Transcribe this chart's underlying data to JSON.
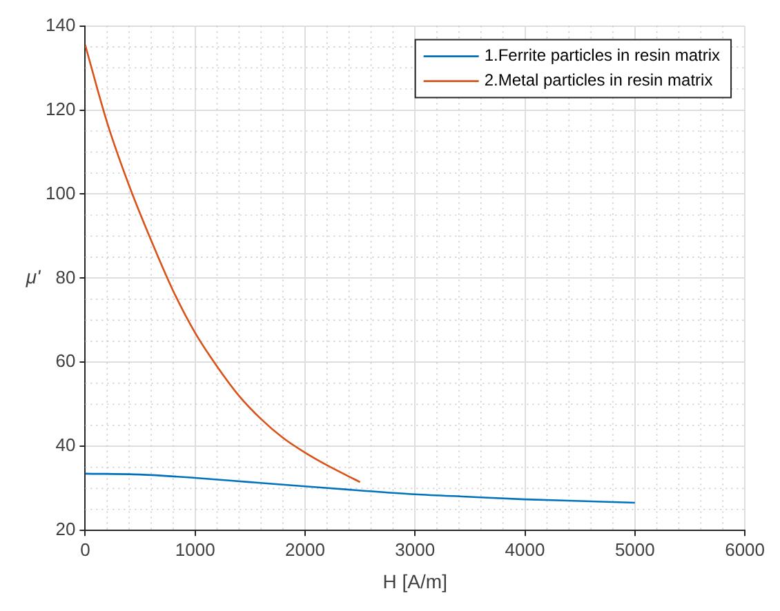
{
  "chart_data": {
    "type": "line",
    "xlabel": "H [A/m]",
    "ylabel": "μ'",
    "xlim": [
      0,
      6000
    ],
    "xticks": [
      0,
      1000,
      2000,
      3000,
      4000,
      5000,
      6000
    ],
    "ylim": [
      20,
      140
    ],
    "yticks": [
      20,
      40,
      60,
      80,
      100,
      120,
      140
    ],
    "grid": true,
    "legend": "top right",
    "marker": "none",
    "line_style": "solid",
    "series": [
      {
        "name": "1.Ferrite particles in resin matrix",
        "color": "#0072bd",
        "x": [
          0,
          500,
          1000,
          1500,
          2000,
          2500,
          3000,
          3500,
          4000,
          4500,
          5000
        ],
        "values": [
          33.5,
          33.3,
          32.5,
          31.5,
          30.5,
          29.5,
          28.6,
          28,
          27.4,
          27,
          26.6
        ]
      },
      {
        "name": "2.Metal particles in resin matrix",
        "color": "#d95319",
        "x": [
          0,
          200,
          400,
          600,
          800,
          1000,
          1200,
          1400,
          1600,
          1800,
          2000,
          2200,
          2500
        ],
        "values": [
          135.5,
          117,
          102,
          89,
          77,
          67,
          59,
          52,
          46.5,
          42,
          38.5,
          35.5,
          31.5
        ]
      }
    ]
  }
}
